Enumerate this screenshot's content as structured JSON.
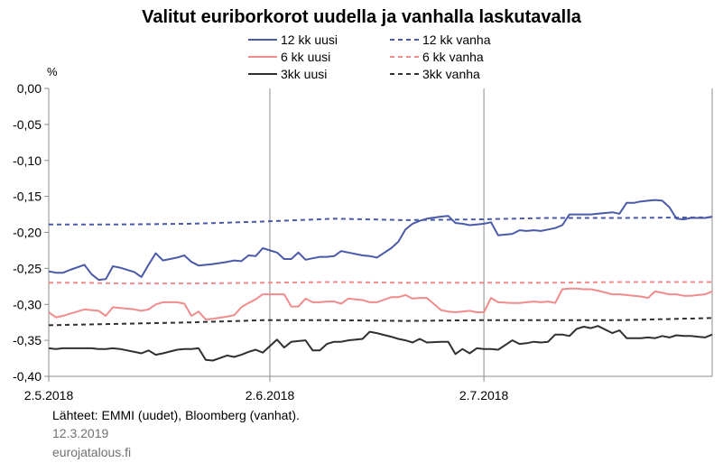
{
  "chart_data": {
    "type": "line",
    "title": "Valitut euriborkorot uudella ja vanhalla laskutavalla",
    "ylabel": "%",
    "ylim": [
      -0.4,
      0.0
    ],
    "yticks": [
      "0,00",
      "-0,05",
      "-0,10",
      "-0,15",
      "-0,20",
      "-0,25",
      "-0,30",
      "-0,35",
      "-0,40"
    ],
    "ytick_values": [
      0,
      -0.05,
      -0.1,
      -0.15,
      -0.2,
      -0.25,
      -0.3,
      -0.35,
      -0.4
    ],
    "xticks": [
      "2.5.2018",
      "2.6.2018",
      "2.7.2018"
    ],
    "xtick_days": [
      0,
      31,
      61
    ],
    "xlim_days": [
      0,
      93
    ],
    "grid": "vertical lines at x ticks",
    "legend_position": "top",
    "series": [
      {
        "name": "12 kk uusi",
        "color": "#4a5aa8",
        "dash": "solid",
        "x": [
          0,
          1,
          2,
          3,
          5,
          6,
          7,
          8,
          9,
          10,
          12,
          13,
          14,
          15,
          16,
          18,
          19,
          20,
          21,
          23,
          25,
          26,
          27,
          28,
          29,
          30,
          32,
          33,
          34,
          35,
          36,
          37,
          38,
          39,
          40,
          41,
          42,
          44,
          45,
          46,
          48,
          49,
          50,
          51,
          52,
          53,
          55,
          56,
          57,
          58,
          59,
          60,
          61,
          62,
          63,
          65,
          66,
          67,
          68,
          69,
          70,
          71,
          72,
          73,
          74,
          75,
          76,
          77,
          79,
          80,
          81,
          82,
          83,
          84,
          85,
          86,
          87,
          88,
          89,
          90,
          91,
          92,
          93
        ],
        "y": [
          -0.254,
          -0.256,
          -0.256,
          -0.252,
          -0.245,
          -0.258,
          -0.266,
          -0.265,
          -0.247,
          -0.249,
          -0.255,
          -0.262,
          -0.245,
          -0.229,
          -0.239,
          -0.235,
          -0.232,
          -0.241,
          -0.246,
          -0.244,
          -0.241,
          -0.239,
          -0.24,
          -0.232,
          -0.233,
          -0.222,
          -0.228,
          -0.237,
          -0.237,
          -0.228,
          -0.238,
          -0.236,
          -0.234,
          -0.234,
          -0.233,
          -0.226,
          -0.228,
          -0.232,
          -0.233,
          -0.235,
          -0.222,
          -0.213,
          -0.196,
          -0.188,
          -0.184,
          -0.181,
          -0.178,
          -0.177,
          -0.187,
          -0.188,
          -0.19,
          -0.189,
          -0.188,
          -0.186,
          -0.204,
          -0.202,
          -0.197,
          -0.198,
          -0.197,
          -0.198,
          -0.196,
          -0.194,
          -0.19,
          -0.175,
          -0.175,
          -0.175,
          -0.175,
          -0.174,
          -0.172,
          -0.174,
          -0.159,
          -0.159,
          -0.157,
          -0.156,
          -0.155,
          -0.156,
          -0.165,
          -0.181,
          -0.182,
          -0.18,
          -0.18,
          -0.18,
          -0.178
        ]
      },
      {
        "name": "12 kk vanha",
        "color": "#4a5aa8",
        "dash": "dashed",
        "x": [
          0,
          5,
          10,
          20,
          30,
          40,
          50,
          60,
          70,
          80,
          93
        ],
        "y": [
          -0.189,
          -0.189,
          -0.189,
          -0.188,
          -0.185,
          -0.181,
          -0.183,
          -0.182,
          -0.18,
          -0.18,
          -0.179
        ]
      },
      {
        "name": "6 kk uusi",
        "color": "#f08c8c",
        "dash": "solid",
        "x": [
          0,
          1,
          2,
          3,
          5,
          6,
          7,
          8,
          9,
          10,
          12,
          13,
          14,
          15,
          16,
          18,
          19,
          20,
          21,
          22,
          23,
          25,
          26,
          27,
          28,
          29,
          30,
          32,
          33,
          34,
          35,
          36,
          37,
          38,
          39,
          40,
          41,
          42,
          44,
          45,
          46,
          48,
          49,
          50,
          51,
          52,
          53,
          55,
          56,
          57,
          58,
          59,
          60,
          61,
          62,
          63,
          65,
          66,
          67,
          68,
          69,
          70,
          71,
          72,
          73,
          74,
          75,
          76,
          77,
          79,
          80,
          81,
          82,
          83,
          84,
          85,
          86,
          87,
          88,
          89,
          90,
          91,
          92,
          93
        ],
        "y": [
          -0.311,
          -0.318,
          -0.316,
          -0.313,
          -0.307,
          -0.308,
          -0.309,
          -0.316,
          -0.304,
          -0.305,
          -0.307,
          -0.309,
          -0.307,
          -0.3,
          -0.297,
          -0.297,
          -0.299,
          -0.316,
          -0.31,
          -0.321,
          -0.32,
          -0.317,
          -0.315,
          -0.304,
          -0.298,
          -0.293,
          -0.286,
          -0.286,
          -0.286,
          -0.303,
          -0.303,
          -0.292,
          -0.297,
          -0.297,
          -0.296,
          -0.296,
          -0.299,
          -0.292,
          -0.294,
          -0.297,
          -0.297,
          -0.29,
          -0.29,
          -0.287,
          -0.292,
          -0.291,
          -0.291,
          -0.308,
          -0.31,
          -0.311,
          -0.31,
          -0.309,
          -0.311,
          -0.311,
          -0.291,
          -0.297,
          -0.298,
          -0.298,
          -0.297,
          -0.296,
          -0.297,
          -0.296,
          -0.298,
          -0.279,
          -0.278,
          -0.278,
          -0.279,
          -0.279,
          -0.281,
          -0.286,
          -0.286,
          -0.287,
          -0.288,
          -0.289,
          -0.291,
          -0.282,
          -0.284,
          -0.286,
          -0.286,
          -0.288,
          -0.288,
          -0.287,
          -0.286,
          -0.282
        ]
      },
      {
        "name": "6 kk vanha",
        "color": "#f08c8c",
        "dash": "dashed",
        "x": [
          0,
          5,
          10,
          20,
          30,
          40,
          50,
          60,
          70,
          80,
          93
        ],
        "y": [
          -0.27,
          -0.27,
          -0.271,
          -0.271,
          -0.27,
          -0.269,
          -0.27,
          -0.27,
          -0.27,
          -0.269,
          -0.269
        ]
      },
      {
        "name": "3kk uusi",
        "color": "#303030",
        "dash": "solid",
        "x": [
          0,
          1,
          2,
          3,
          5,
          6,
          7,
          8,
          9,
          10,
          12,
          13,
          14,
          15,
          16,
          18,
          19,
          20,
          21,
          22,
          23,
          25,
          26,
          27,
          28,
          29,
          30,
          32,
          33,
          34,
          35,
          36,
          37,
          38,
          39,
          40,
          41,
          42,
          44,
          45,
          46,
          48,
          49,
          50,
          51,
          52,
          53,
          55,
          56,
          57,
          58,
          59,
          60,
          61,
          62,
          63,
          65,
          66,
          67,
          68,
          69,
          70,
          71,
          72,
          73,
          74,
          75,
          76,
          77,
          79,
          80,
          81,
          82,
          83,
          84,
          85,
          86,
          87,
          88,
          89,
          90,
          91,
          92,
          93
        ],
        "y": [
          -0.361,
          -0.362,
          -0.361,
          -0.361,
          -0.361,
          -0.361,
          -0.362,
          -0.362,
          -0.361,
          -0.362,
          -0.366,
          -0.368,
          -0.364,
          -0.37,
          -0.368,
          -0.363,
          -0.362,
          -0.362,
          -0.361,
          -0.377,
          -0.378,
          -0.371,
          -0.373,
          -0.37,
          -0.366,
          -0.363,
          -0.367,
          -0.349,
          -0.36,
          -0.352,
          -0.351,
          -0.35,
          -0.364,
          -0.364,
          -0.355,
          -0.352,
          -0.352,
          -0.35,
          -0.348,
          -0.338,
          -0.34,
          -0.345,
          -0.348,
          -0.35,
          -0.353,
          -0.348,
          -0.353,
          -0.352,
          -0.352,
          -0.369,
          -0.362,
          -0.368,
          -0.361,
          -0.362,
          -0.362,
          -0.363,
          -0.35,
          -0.355,
          -0.354,
          -0.352,
          -0.353,
          -0.352,
          -0.342,
          -0.342,
          -0.344,
          -0.334,
          -0.331,
          -0.333,
          -0.33,
          -0.34,
          -0.336,
          -0.347,
          -0.347,
          -0.347,
          -0.346,
          -0.347,
          -0.344,
          -0.346,
          -0.343,
          -0.344,
          -0.344,
          -0.345,
          -0.346,
          -0.342
        ]
      },
      {
        "name": "3kk vanha",
        "color": "#303030",
        "dash": "dashed",
        "x": [
          0,
          5,
          10,
          20,
          30,
          40,
          50,
          60,
          70,
          80,
          93
        ],
        "y": [
          -0.329,
          -0.328,
          -0.327,
          -0.325,
          -0.322,
          -0.322,
          -0.323,
          -0.322,
          -0.322,
          -0.322,
          -0.319
        ]
      }
    ]
  },
  "footer": {
    "source": "Lähteet: EMMI (uudet), Bloomberg (vanhat).",
    "date": "12.3.2019",
    "site": "eurojatalous.fi"
  }
}
